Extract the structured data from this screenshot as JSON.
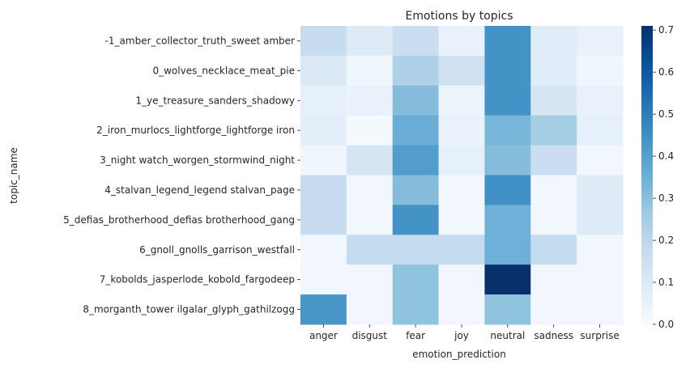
{
  "chart_data": {
    "type": "heatmap",
    "title": "Emotions by topics",
    "xlabel": "emotion_prediction",
    "ylabel": "topic_name",
    "columns": [
      "anger",
      "disgust",
      "fear",
      "joy",
      "neutral",
      "sadness",
      "surprise"
    ],
    "rows": [
      "-1_amber_collector_truth_sweet amber",
      "0_wolves_necklace_meat_pie",
      "1_ye_treasure_sanders_shadowy",
      "2_iron_murlocs_lightforge_lightforge iron",
      "3_night watch_worgen_stormwind_night",
      "4_stalvan_legend_legend stalvan_page",
      "5_defias_brotherhood_defias brotherhood_gang",
      "6_gnoll_gnolls_garrison_westfall",
      "7_kobolds_jasperlode_kobold_fargodeep",
      "8_morganth_tower ilgalar_glyph_gathilzogg"
    ],
    "values": [
      [
        0.17,
        0.09,
        0.16,
        0.05,
        0.44,
        0.08,
        0.05
      ],
      [
        0.1,
        0.03,
        0.23,
        0.14,
        0.44,
        0.08,
        0.03
      ],
      [
        0.06,
        0.05,
        0.31,
        0.04,
        0.44,
        0.12,
        0.05
      ],
      [
        0.07,
        0.01,
        0.36,
        0.05,
        0.33,
        0.25,
        0.06
      ],
      [
        0.03,
        0.12,
        0.41,
        0.06,
        0.31,
        0.16,
        0.02
      ],
      [
        0.17,
        0.02,
        0.31,
        0.02,
        0.45,
        0.02,
        0.09
      ],
      [
        0.17,
        0.02,
        0.44,
        0.02,
        0.35,
        0.02,
        0.09
      ],
      [
        0.02,
        0.18,
        0.18,
        0.18,
        0.35,
        0.18,
        0.02
      ],
      [
        0.02,
        0.02,
        0.29,
        0.02,
        0.71,
        0.02,
        0.02
      ],
      [
        0.43,
        0.02,
        0.29,
        0.02,
        0.29,
        0.02,
        0.02
      ]
    ],
    "vmin": 0.0,
    "vmax": 0.71,
    "colormap": "Blues",
    "colorbar_ticks": [
      "0.0",
      "0.1",
      "0.2",
      "0.3",
      "0.4",
      "0.5",
      "0.6",
      "0.7"
    ],
    "colorbar_tick_values": [
      0.0,
      0.1,
      0.2,
      0.3,
      0.4,
      0.5,
      0.6,
      0.7
    ]
  }
}
